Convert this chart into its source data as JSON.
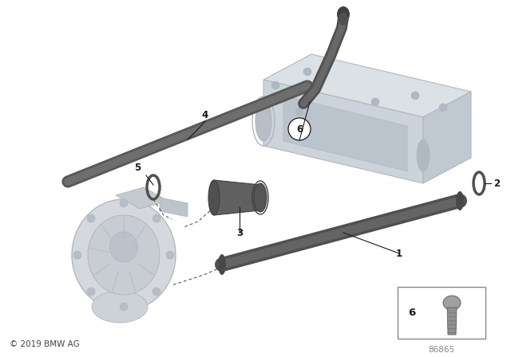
{
  "background_color": "#ffffff",
  "part_number": "86865",
  "copyright": "© 2019 BMW AG",
  "dark_pipe": "#606060",
  "ghost_fill": "#d8dde2",
  "ghost_edge": "#b0b8c0",
  "label_fs": 8.5,
  "callout_color": "#1a1a1a"
}
